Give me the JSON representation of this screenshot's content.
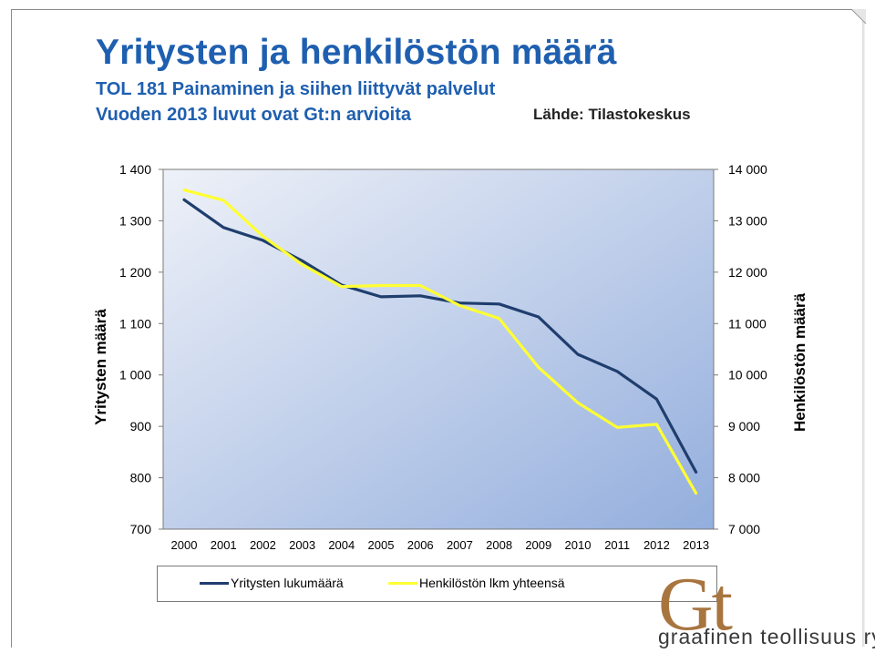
{
  "slide": {
    "title": "Yritysten ja henkilöstön määrä",
    "subtitle1": "TOL 181 Painaminen ja siihen liittyvät palvelut",
    "subtitle2": "Vuoden 2013 luvut ovat Gt:n arvioita",
    "source": "Lähde: Tilastokeskus"
  },
  "logo": {
    "mark": "Gt",
    "text": "graafinen teollisuus ry"
  },
  "colors": {
    "title": "#1f5fb0",
    "series_companies": "#1f3e6e",
    "series_personnel": "#ffff33",
    "plot_gradient_start": "#eef1f8",
    "plot_gradient_end": "#93aedd"
  },
  "chart_data": {
    "type": "line",
    "categories": [
      "2000",
      "2001",
      "2002",
      "2003",
      "2004",
      "2005",
      "2006",
      "2007",
      "2008",
      "2009",
      "2010",
      "2011",
      "2012",
      "2013"
    ],
    "ylabel_left": "Yritysten määrä",
    "ylabel_right": "Henkilöstön määrä",
    "ylim_left": [
      700,
      1400
    ],
    "ylim_right": [
      7000,
      14000
    ],
    "yticks_left": [
      "1 400",
      "1 300",
      "1 200",
      "1 100",
      "1 000",
      "900",
      "800",
      "700"
    ],
    "yticks_right": [
      "14 000",
      "13 000",
      "12 000",
      "11 000",
      "10 000",
      "9 000",
      "8 000",
      "7 000"
    ],
    "grid": false,
    "legend_position": "bottom",
    "series": [
      {
        "name": "Yritysten lukumäärä",
        "axis": "left",
        "values": [
          1341,
          1287,
          1262,
          1222,
          1175,
          1152,
          1154,
          1140,
          1138,
          1113,
          1040,
          1007,
          953,
          811
        ]
      },
      {
        "name": "Henkilöstön lkm yhteensä",
        "axis": "right",
        "values": [
          13600,
          13400,
          12700,
          12150,
          11720,
          11740,
          11740,
          11350,
          11100,
          10150,
          9460,
          8980,
          9040,
          7700
        ]
      }
    ]
  }
}
